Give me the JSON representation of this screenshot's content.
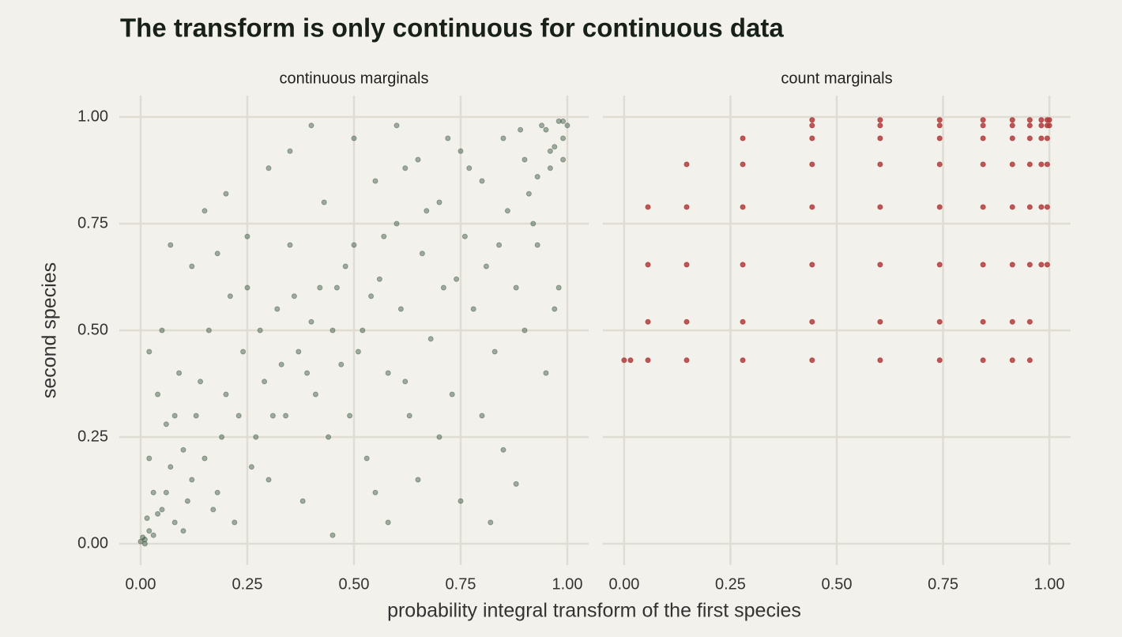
{
  "title": "The transform is only continuous for continuous data",
  "x_label": "probability integral transform of the first species",
  "y_label": "second species",
  "chart_data": [
    {
      "type": "scatter",
      "title": "continuous marginals",
      "color": "#1e4129",
      "opacity": 0.4,
      "xlim": [
        -0.05,
        1.05
      ],
      "ylim": [
        -0.05,
        1.05
      ],
      "xticks": [
        {
          "value": 0,
          "label": "0.00"
        },
        {
          "value": 0.25,
          "label": "0.25"
        },
        {
          "value": 0.5,
          "label": "0.50"
        },
        {
          "value": 0.75,
          "label": "0.75"
        },
        {
          "value": 1,
          "label": "1.00"
        }
      ],
      "yticks": [
        {
          "value": 0,
          "label": "0.00"
        },
        {
          "value": 0.25,
          "label": "0.25"
        },
        {
          "value": 0.5,
          "label": "0.50"
        },
        {
          "value": 0.75,
          "label": "0.75"
        },
        {
          "value": 1,
          "label": "1.00"
        }
      ],
      "x": [
        0.01,
        0.02,
        0.03,
        0.05,
        0.07,
        0.08,
        0.1,
        0.12,
        0.02,
        0.04,
        0.06,
        0.09,
        0.11,
        0.13,
        0.15,
        0.16,
        0.18,
        0.2,
        0.22,
        0.24,
        0.25,
        0.27,
        0.29,
        0.3,
        0.32,
        0.34,
        0.35,
        0.37,
        0.38,
        0.4,
        0.41,
        0.43,
        0.44,
        0.46,
        0.47,
        0.49,
        0.5,
        0.52,
        0.53,
        0.55,
        0.56,
        0.58,
        0.6,
        0.61,
        0.63,
        0.65,
        0.66,
        0.68,
        0.7,
        0.71,
        0.73,
        0.75,
        0.76,
        0.78,
        0.8,
        0.81,
        0.83,
        0.85,
        0.86,
        0.88,
        0.9,
        0.91,
        0.93,
        0.95,
        0.96,
        0.97,
        0.98,
        0.99,
        1.0,
        0.99,
        0.97,
        0.94,
        0.89,
        0.92,
        0.84,
        0.77,
        0.72,
        0.67,
        0.62,
        0.57,
        0.54,
        0.51,
        0.48,
        0.45,
        0.42,
        0.39,
        0.36,
        0.33,
        0.31,
        0.28,
        0.26,
        0.23,
        0.21,
        0.19,
        0.17,
        0.14,
        0.12,
        0.1,
        0.08,
        0.06,
        0.04,
        0.03,
        0.015,
        0.005,
        0.01,
        0.0,
        0.05,
        0.07,
        0.15,
        0.2,
        0.3,
        0.4,
        0.35,
        0.5,
        0.6,
        0.45,
        0.55,
        0.65,
        0.7,
        0.75,
        0.8,
        0.82,
        0.88,
        0.85,
        0.95,
        0.98,
        0.9,
        0.02,
        0.18,
        0.25,
        0.58,
        0.62,
        0.74,
        0.93,
        0.96,
        0.99
      ],
      "y": [
        0.01,
        0.03,
        0.12,
        0.08,
        0.18,
        0.05,
        0.22,
        0.15,
        0.2,
        0.35,
        0.28,
        0.4,
        0.1,
        0.3,
        0.2,
        0.5,
        0.12,
        0.35,
        0.05,
        0.45,
        0.6,
        0.25,
        0.38,
        0.15,
        0.55,
        0.3,
        0.7,
        0.45,
        0.1,
        0.52,
        0.35,
        0.8,
        0.25,
        0.6,
        0.42,
        0.3,
        0.7,
        0.5,
        0.2,
        0.85,
        0.62,
        0.4,
        0.75,
        0.55,
        0.3,
        0.9,
        0.68,
        0.48,
        0.8,
        0.6,
        0.35,
        0.92,
        0.72,
        0.55,
        0.85,
        0.65,
        0.45,
        0.95,
        0.78,
        0.6,
        0.9,
        0.82,
        0.7,
        0.97,
        0.88,
        0.55,
        0.99,
        0.95,
        0.98,
        0.99,
        0.93,
        0.98,
        0.97,
        0.75,
        0.7,
        0.88,
        0.95,
        0.78,
        0.88,
        0.72,
        0.58,
        0.45,
        0.65,
        0.5,
        0.6,
        0.4,
        0.58,
        0.42,
        0.3,
        0.5,
        0.18,
        0.3,
        0.58,
        0.25,
        0.08,
        0.38,
        0.65,
        0.03,
        0.3,
        0.12,
        0.07,
        0.02,
        0.06,
        0.015,
        0.0,
        0.005,
        0.5,
        0.7,
        0.78,
        0.82,
        0.88,
        0.98,
        0.92,
        0.95,
        0.98,
        0.02,
        0.12,
        0.15,
        0.25,
        0.1,
        0.3,
        0.05,
        0.14,
        0.22,
        0.4,
        0.6,
        0.5,
        0.45,
        0.68,
        0.72,
        0.05,
        0.38,
        0.62,
        0.86,
        0.92,
        0.9
      ]
    },
    {
      "type": "scatter",
      "title": "count marginals",
      "color": "#b03c3c",
      "opacity": 0.85,
      "xlim": [
        -0.05,
        1.05
      ],
      "xticks": [
        {
          "value": 0,
          "label": "0.00"
        },
        {
          "value": 0.25,
          "label": "0.25"
        },
        {
          "value": 0.5,
          "label": "0.50"
        },
        {
          "value": 0.75,
          "label": "0.75"
        },
        {
          "value": 1,
          "label": "1.00"
        }
      ],
      "x": [
        0,
        0.015,
        0.056,
        0.147,
        0.279,
        0.442,
        0.602,
        0.742,
        0.844,
        0.913,
        0.954,
        0.056,
        0.147,
        0.279,
        0.442,
        0.602,
        0.742,
        0.844,
        0.913,
        0.954,
        0.056,
        0.147,
        0.279,
        0.442,
        0.602,
        0.742,
        0.844,
        0.913,
        0.954,
        0.981,
        0.995,
        0.056,
        0.147,
        0.279,
        0.442,
        0.602,
        0.742,
        0.844,
        0.913,
        0.954,
        0.981,
        0.995,
        0.147,
        0.279,
        0.442,
        0.602,
        0.742,
        0.844,
        0.913,
        0.954,
        0.981,
        0.995,
        0.279,
        0.442,
        0.602,
        0.742,
        0.844,
        0.913,
        0.954,
        0.981,
        0.995,
        0.442,
        0.602,
        0.742,
        0.844,
        0.913,
        0.954,
        0.981,
        0.995,
        1.0,
        0.442,
        0.602,
        0.742,
        0.844,
        0.913,
        0.954,
        0.981,
        0.995,
        1.0
      ],
      "y": [
        0.43,
        0.43,
        0.43,
        0.43,
        0.43,
        0.43,
        0.43,
        0.43,
        0.43,
        0.43,
        0.43,
        0.52,
        0.52,
        0.52,
        0.52,
        0.52,
        0.52,
        0.52,
        0.52,
        0.52,
        0.654,
        0.654,
        0.654,
        0.654,
        0.654,
        0.654,
        0.654,
        0.654,
        0.654,
        0.654,
        0.654,
        0.789,
        0.789,
        0.789,
        0.789,
        0.789,
        0.789,
        0.789,
        0.789,
        0.789,
        0.789,
        0.789,
        0.889,
        0.889,
        0.889,
        0.889,
        0.889,
        0.889,
        0.889,
        0.889,
        0.889,
        0.889,
        0.95,
        0.95,
        0.95,
        0.95,
        0.95,
        0.95,
        0.95,
        0.95,
        0.95,
        0.98,
        0.98,
        0.98,
        0.98,
        0.98,
        0.98,
        0.98,
        0.98,
        0.98,
        0.993,
        0.993,
        0.993,
        0.993,
        0.993,
        0.993,
        0.993,
        0.993,
        0.993
      ]
    }
  ]
}
